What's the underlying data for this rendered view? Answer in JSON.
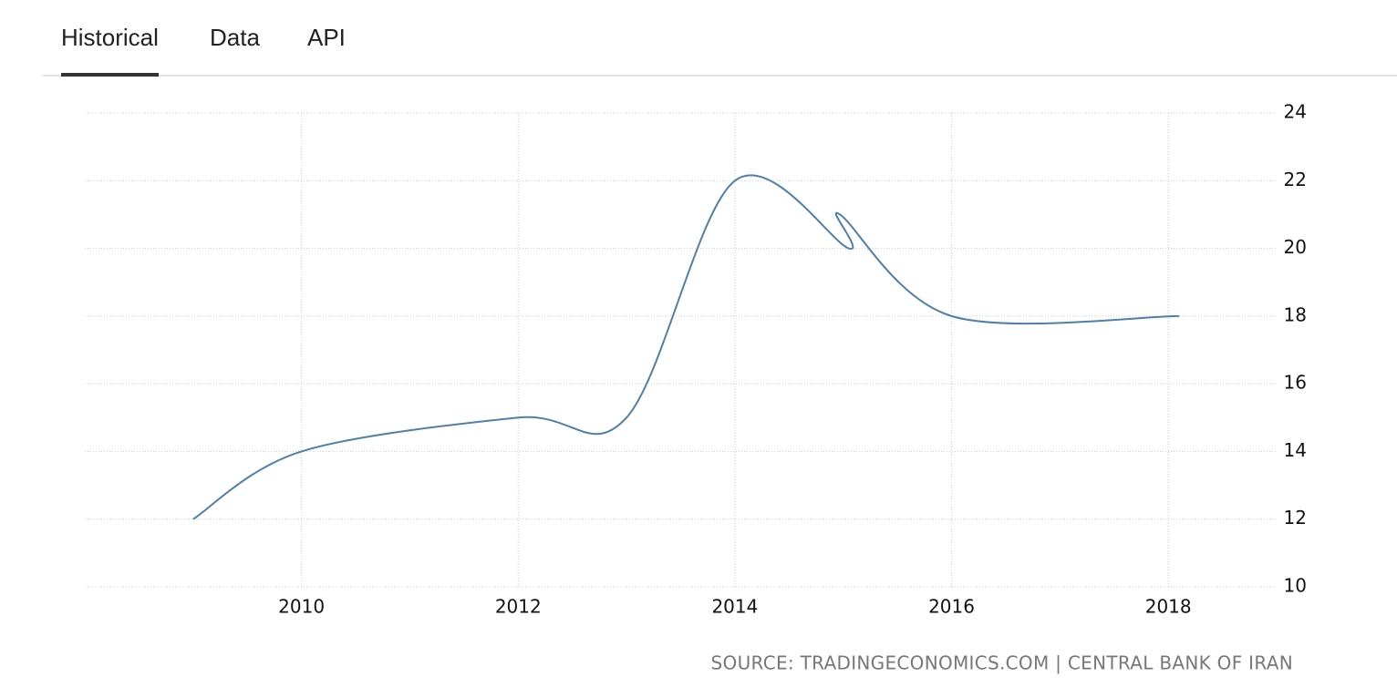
{
  "tabs": [
    "Historical",
    "Data",
    "API"
  ],
  "chart_data": {
    "type": "line",
    "x": [
      2009,
      2010,
      2012,
      2013,
      2014,
      2015.05,
      2014.97,
      2016,
      2018.1
    ],
    "values": [
      12,
      14,
      15,
      15,
      22,
      20,
      21,
      18,
      18
    ],
    "color": "#4f7fab",
    "xlim": [
      2008,
      2019
    ],
    "xticks": [
      2010,
      2012,
      2014,
      2016,
      2018
    ],
    "ylim": [
      10,
      24
    ],
    "yticks": [
      10,
      12,
      14,
      16,
      18,
      20,
      22,
      24
    ],
    "grid": true,
    "source": "SOURCE: TRADINGECONOMICS.COM | CENTRAL BANK OF IRAN"
  }
}
